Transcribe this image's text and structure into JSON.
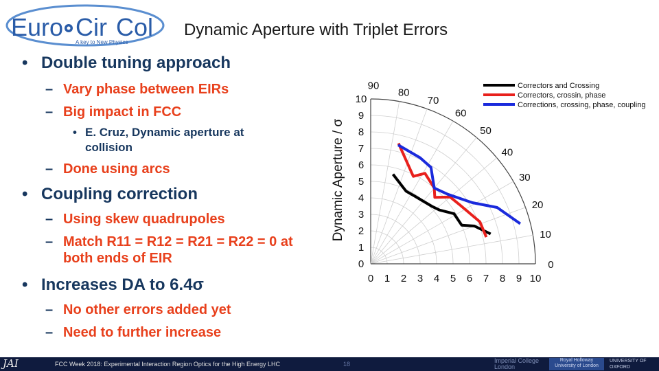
{
  "logo": {
    "brand_left": "Euro",
    "brand_right": "Cir",
    "brand_end": "Col",
    "tagline": "A key to New Physics"
  },
  "slide": {
    "title": "Dynamic Aperture with Triplet Errors",
    "bullets": [
      {
        "level": 1,
        "text": "Double tuning approach"
      },
      {
        "level": 2,
        "text": "Vary phase between EIRs"
      },
      {
        "level": 2,
        "text": "Big impact in FCC"
      },
      {
        "level": 3,
        "text": "E. Cruz, Dynamic aperture at collision"
      },
      {
        "level": 2,
        "text": "Done using arcs"
      },
      {
        "level": 1,
        "text": "Coupling correction"
      },
      {
        "level": 2,
        "text": "Using skew quadrupoles"
      },
      {
        "level": 2,
        "text": "Match R11 = R12 = R21 = R22 = 0 at both ends of EIR"
      },
      {
        "level": 1,
        "text": "Increases DA to 6.4σ"
      },
      {
        "level": 2,
        "text": "No other errors added yet"
      },
      {
        "level": 2,
        "text": "Need to further increase"
      }
    ]
  },
  "chart_data": {
    "type": "line",
    "title": "",
    "ylabel": "Dynamic Aperture / σ",
    "xlabel": "",
    "r_range": [
      0,
      10
    ],
    "r_ticks": [
      "0",
      "1",
      "2",
      "3",
      "4",
      "5",
      "6",
      "7",
      "8",
      "9",
      "10"
    ],
    "angle_ticks": [
      90,
      80,
      70,
      60,
      50,
      40,
      30,
      20,
      10,
      0
    ],
    "angle_labels": [
      "90",
      "80",
      "70",
      "60",
      "50",
      "40",
      "30",
      "20",
      "10",
      "0"
    ],
    "legend_position": "top-right",
    "series": [
      {
        "name": "Correctors and Crossing",
        "color": "#000000",
        "points": [
          [
            5.6,
            76
          ],
          [
            4.9,
            64
          ],
          [
            4.9,
            57
          ],
          [
            5.1,
            43
          ],
          [
            5.3,
            38
          ],
          [
            5.9,
            31
          ],
          [
            6.0,
            23
          ],
          [
            6.7,
            20
          ],
          [
            7.5,
            14
          ]
        ]
      },
      {
        "name": "Correctors, crossin, phase",
        "color": "#e8201c",
        "points": [
          [
            7.5,
            77
          ],
          [
            5.9,
            64
          ],
          [
            6.4,
            59
          ],
          [
            6.0,
            50
          ],
          [
            5.6,
            46
          ],
          [
            6.3,
            40
          ],
          [
            6.5,
            33
          ],
          [
            7.1,
            21
          ],
          [
            7.2,
            13
          ]
        ]
      },
      {
        "name": "Corrections, crossing, phase, coupling",
        "color": "#1a2adc",
        "points": [
          [
            7.4,
            77
          ],
          [
            7.1,
            65
          ],
          [
            6.9,
            58
          ],
          [
            6.0,
            50
          ],
          [
            6.3,
            42
          ],
          [
            7.2,
            31
          ],
          [
            8.4,
            24
          ],
          [
            9.4,
            15
          ]
        ]
      }
    ]
  },
  "footer": {
    "logo_text": "JAI",
    "text": "FCC Week 2018: Experimental Interaction Region Optics for the High Energy LHC",
    "page_number": "18",
    "imperial_line1": "Imperial College",
    "imperial_line2": "London",
    "royal_holloway_line1": "Royal Holloway",
    "royal_holloway_line2": "University of London",
    "oxford_line1": "UNIVERSITY OF",
    "oxford_line2": "OXFORD"
  }
}
